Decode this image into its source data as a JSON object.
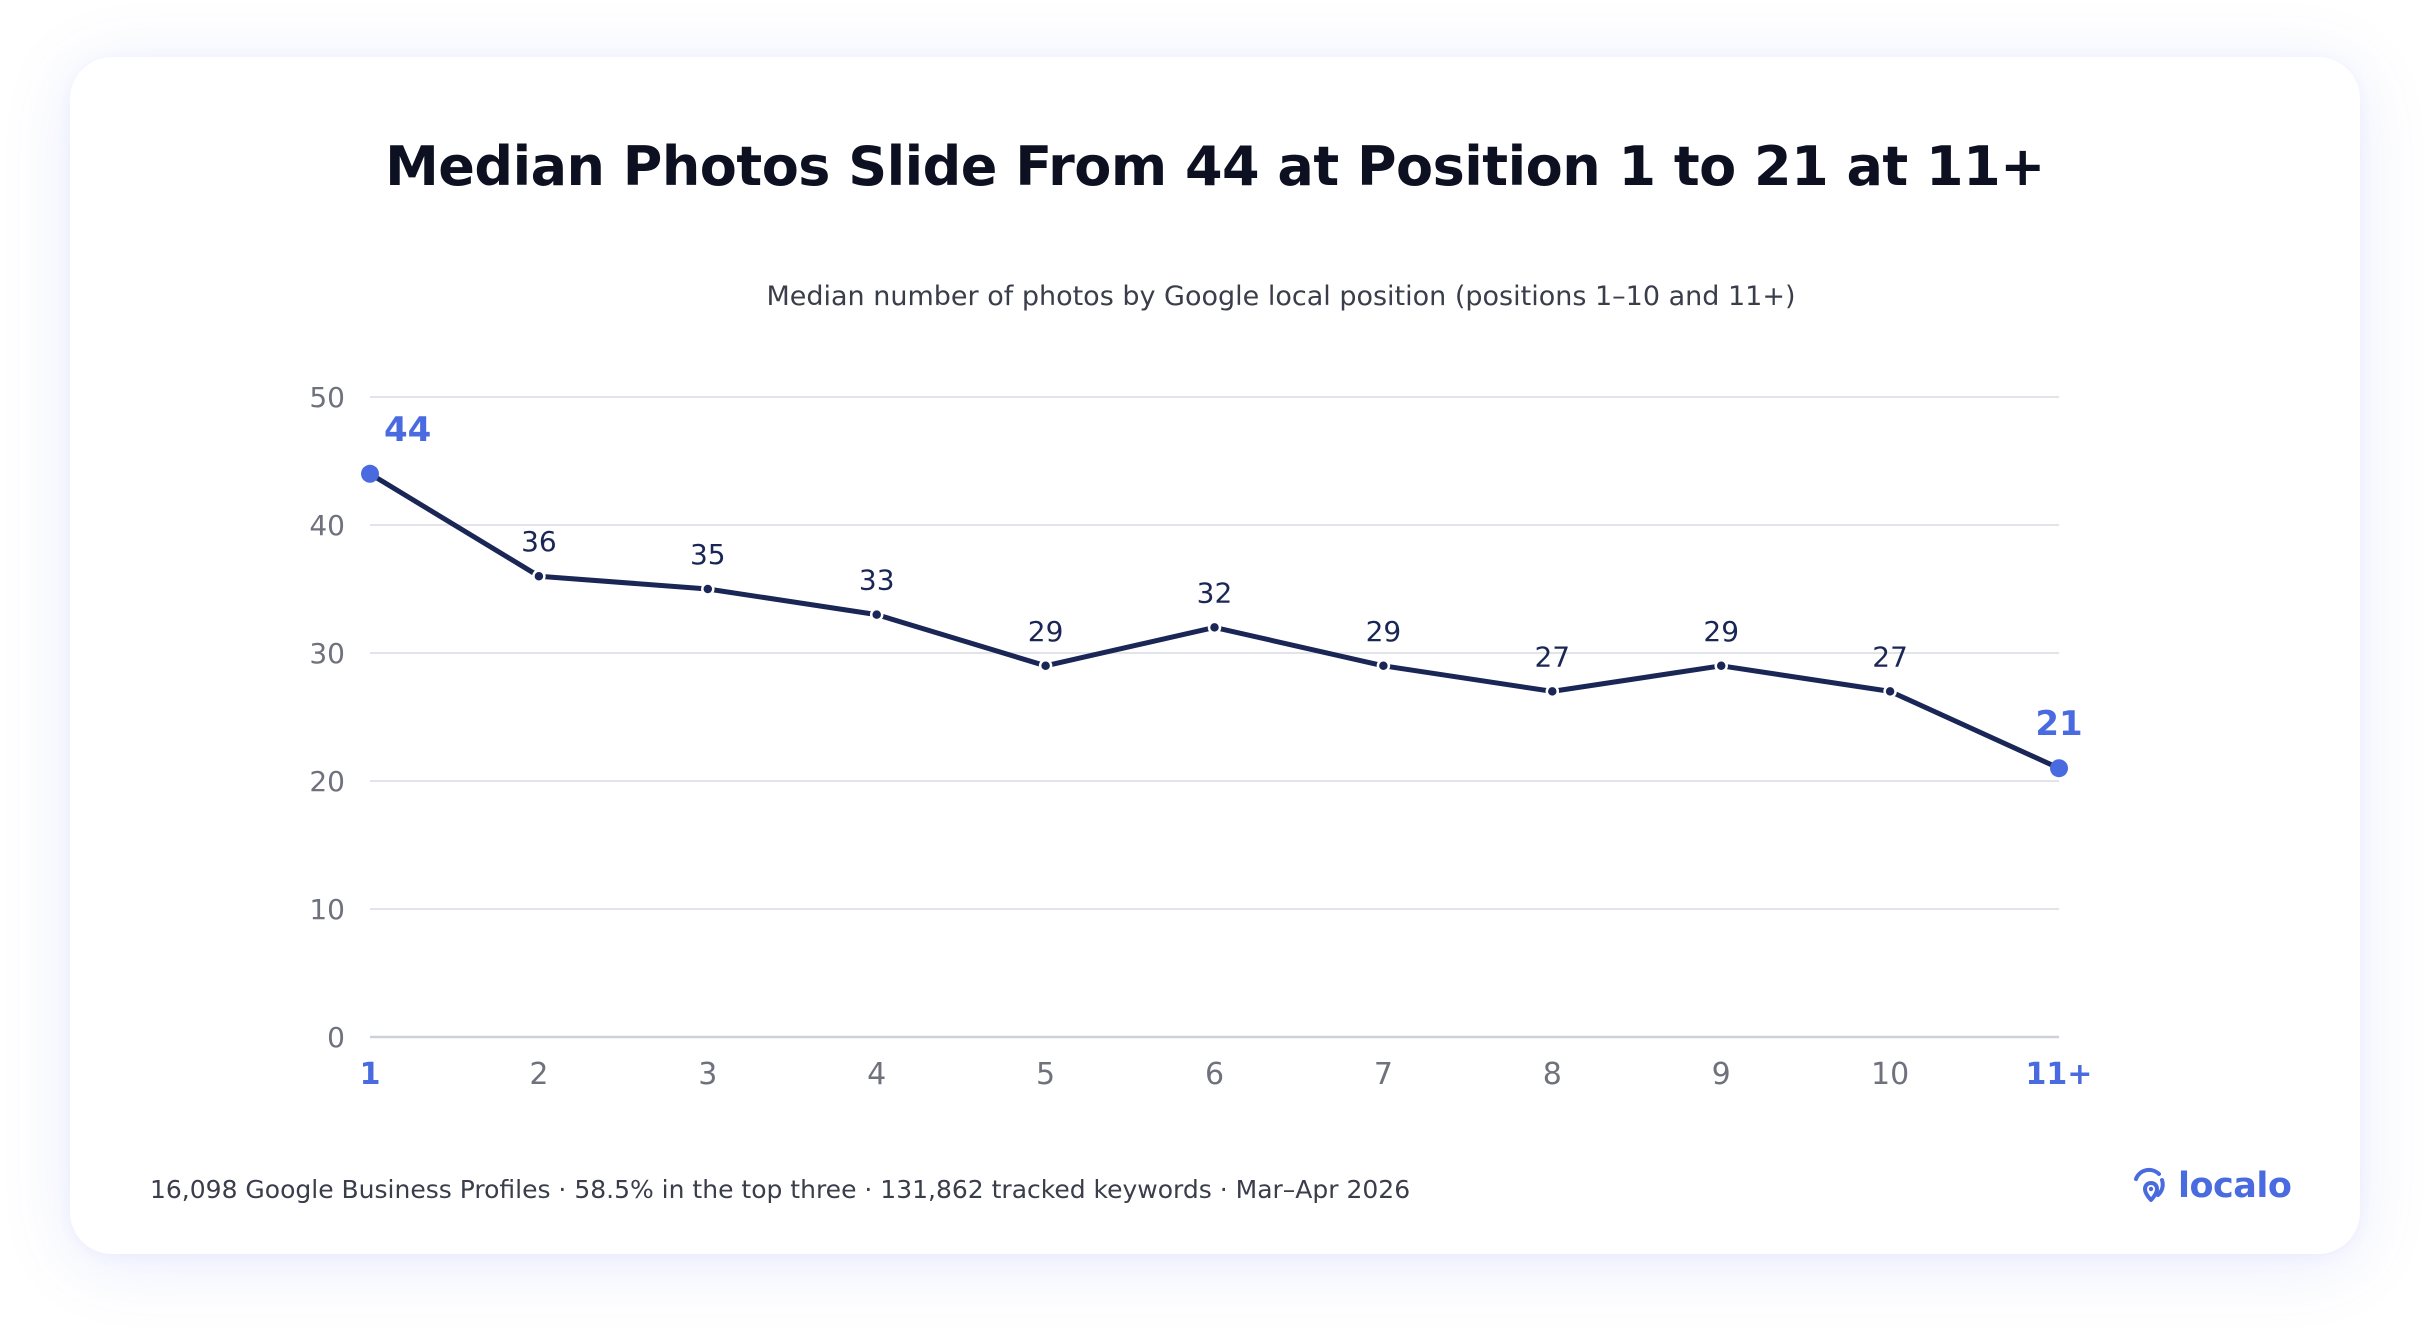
{
  "chart_data": {
    "type": "line",
    "title": "Median Photos Slide From 44 at Position 1 to 21 at 11+",
    "subtitle": "Median number of photos by Google local position (positions 1–10 and 11+)",
    "categories": [
      "1",
      "2",
      "3",
      "4",
      "5",
      "6",
      "7",
      "8",
      "9",
      "10",
      "11+"
    ],
    "values": [
      44,
      36,
      35,
      33,
      29,
      32,
      29,
      27,
      29,
      27,
      21
    ],
    "highlighted_categories": [
      "1",
      "11+"
    ],
    "ylim": [
      0,
      50
    ],
    "yticks": [
      0,
      10,
      20,
      30,
      40,
      50
    ],
    "xlabel": "",
    "ylabel": "",
    "grid": true,
    "legend": "none",
    "colors": {
      "line": "#1a2655",
      "highlight": "#4a6ae0",
      "grid": "#e3e4e9",
      "axis": "#cfd1d8",
      "tick_label": "#6f727d",
      "data_label": "#1a2655"
    }
  },
  "footer": {
    "note": "16,098 Google Business Profiles · 58.5% in the top three · 131,862 tracked keywords · Mar–Apr 2026"
  },
  "brand": {
    "name": "localo",
    "icon": "location-pin-rings-icon",
    "color": "#4a6ae0"
  }
}
